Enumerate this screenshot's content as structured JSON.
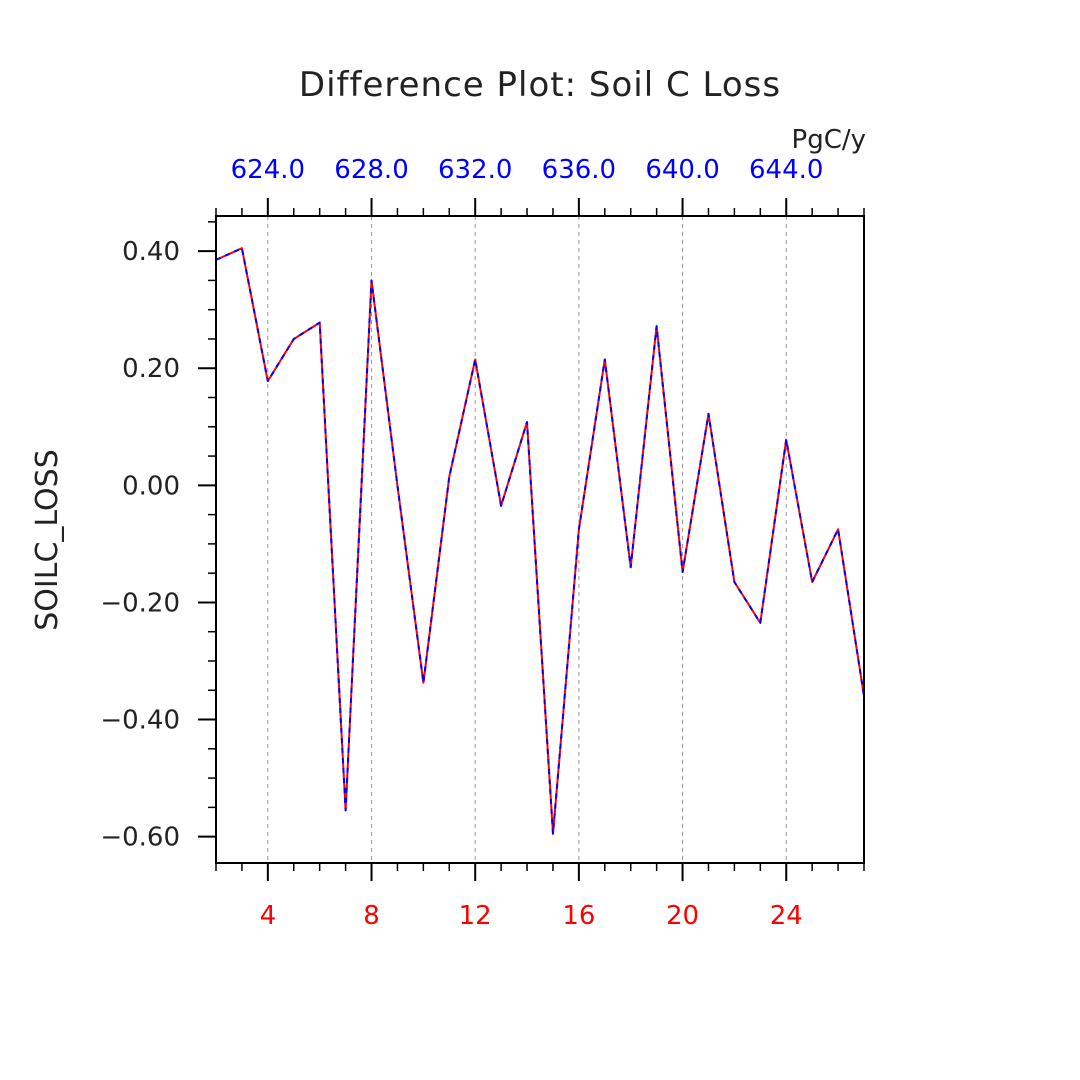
{
  "chart_data": {
    "type": "line",
    "title": "Difference Plot: Soil C Loss",
    "ylabel": "SOILC_LOSS",
    "units": "PgC/y",
    "xlim": [
      2,
      27
    ],
    "ylim": [
      -0.645,
      0.46
    ],
    "x_ticks": [
      "4",
      "8",
      "12",
      "16",
      "20",
      "24"
    ],
    "x_tick_values": [
      4,
      8,
      12,
      16,
      20,
      24
    ],
    "x_top_ticks": [
      "624.0",
      "628.0",
      "632.0",
      "636.0",
      "640.0",
      "644.0"
    ],
    "y_ticks": [
      "0.40",
      "0.20",
      "0.00",
      "−0.20",
      "−0.40",
      "−0.60"
    ],
    "y_tick_values": [
      0.4,
      0.2,
      0.0,
      -0.2,
      -0.4,
      -0.6
    ],
    "grid": "vertical-dashed",
    "x": [
      2,
      3,
      4,
      5,
      6,
      7,
      8,
      9,
      10,
      11,
      12,
      13,
      14,
      15,
      16,
      17,
      18,
      19,
      20,
      21,
      22,
      23,
      24,
      25,
      26,
      27
    ],
    "series": [
      {
        "color": "#ff0000",
        "style": "solid",
        "values": [
          0.385,
          0.405,
          0.178,
          0.25,
          0.278,
          -0.555,
          0.35,
          0.0,
          -0.337,
          0.015,
          0.215,
          -0.035,
          0.108,
          -0.595,
          -0.075,
          0.215,
          -0.14,
          0.272,
          -0.148,
          0.122,
          -0.165,
          -0.235,
          0.078,
          -0.165,
          -0.075,
          -0.36
        ]
      },
      {
        "color": "#0000ff",
        "style": "dashed",
        "values": [
          0.385,
          0.405,
          0.178,
          0.25,
          0.278,
          -0.555,
          0.35,
          0.0,
          -0.337,
          0.015,
          0.215,
          -0.035,
          0.108,
          -0.595,
          -0.075,
          0.215,
          -0.14,
          0.272,
          -0.148,
          0.122,
          -0.165,
          -0.235,
          0.078,
          -0.165,
          -0.075,
          -0.36
        ]
      }
    ],
    "colors": {
      "bottom_axis": "#ff0000",
      "top_axis": "#0000ff",
      "text": "#222222"
    }
  }
}
